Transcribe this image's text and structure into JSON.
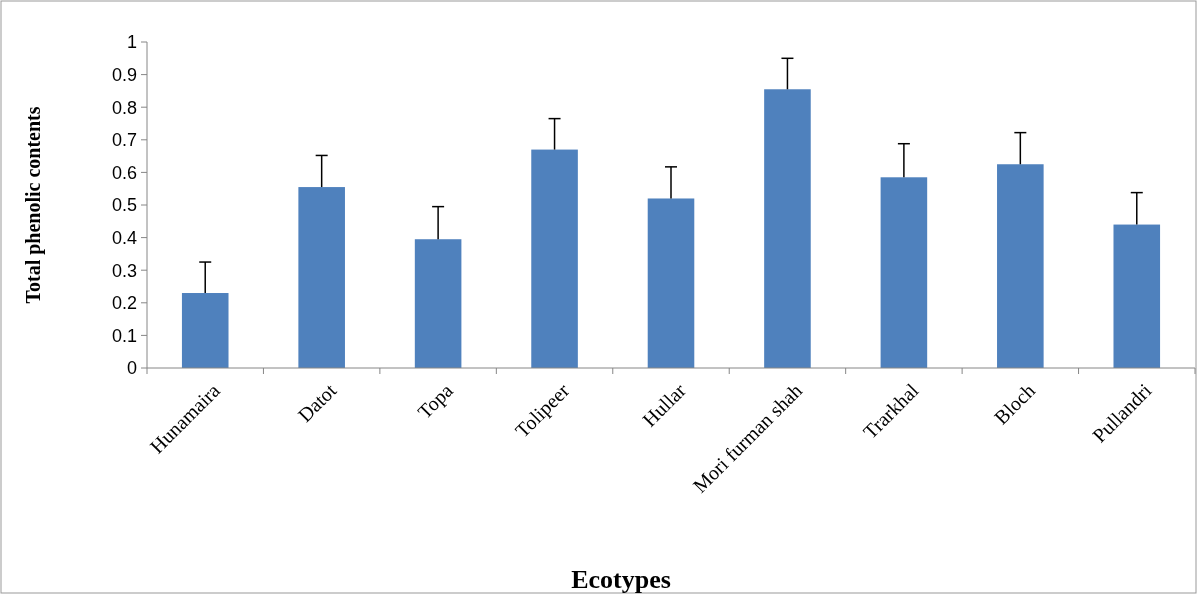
{
  "chart_data": {
    "type": "bar",
    "xlabel": "Ecotypes",
    "ylabel": "Total phenolic contents",
    "categories": [
      "Hunamaira",
      "Datot",
      "Topa",
      "Tolipeer",
      "Hullar",
      "Mori furman shah",
      "Trarkhal",
      "Bloch",
      "Pullandri"
    ],
    "values": [
      0.23,
      0.555,
      0.395,
      0.67,
      0.52,
      0.855,
      0.585,
      0.625,
      0.44
    ],
    "errors": [
      [
        0.23,
        0.325
      ],
      [
        0.555,
        0.652
      ],
      [
        0.395,
        0.495
      ],
      [
        0.67,
        0.765
      ],
      [
        0.52,
        0.617
      ],
      [
        0.855,
        0.95
      ],
      [
        0.585,
        0.688
      ],
      [
        0.625,
        0.722
      ],
      [
        0.44,
        0.538
      ]
    ],
    "color": "#4f81bd",
    "ylim": [
      0,
      1
    ],
    "yticks": [
      0,
      0.1,
      0.2,
      0.3,
      0.4,
      0.5,
      0.6,
      0.7,
      0.8,
      0.9,
      1
    ],
    "grid": false
  }
}
